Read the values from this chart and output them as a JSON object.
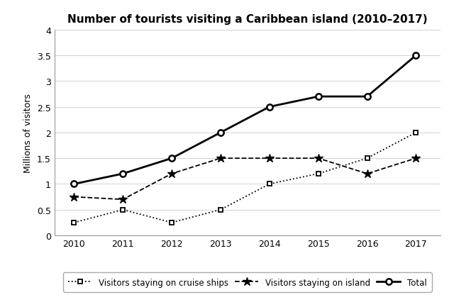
{
  "title": "Number of tourists visiting a Caribbean island (2010–2017)",
  "ylabel": "Millions of visitors",
  "years": [
    2010,
    2011,
    2012,
    2013,
    2014,
    2015,
    2016,
    2017
  ],
  "cruise_ships": [
    0.25,
    0.5,
    0.25,
    0.5,
    1.0,
    1.2,
    1.5,
    2.0
  ],
  "island": [
    0.75,
    0.7,
    1.2,
    1.5,
    1.5,
    1.5,
    1.2,
    1.5
  ],
  "total": [
    1.0,
    1.2,
    1.5,
    2.0,
    2.5,
    2.7,
    2.7,
    3.5
  ],
  "ylim": [
    0,
    4
  ],
  "yticks": [
    0,
    0.5,
    1.0,
    1.5,
    2.0,
    2.5,
    3.0,
    3.5,
    4
  ],
  "ytick_labels": [
    "0",
    "0.5",
    "1",
    "1.5",
    "2",
    "2.5",
    "3",
    "3.5",
    "4"
  ],
  "xlim": [
    2009.6,
    2017.5
  ],
  "legend_labels": [
    "Visitors staying on cruise ships",
    "Visitors staying on island",
    "Total"
  ],
  "background_color": "#ffffff",
  "line_color": "#000000",
  "title_fontsize": 11,
  "axis_fontsize": 9,
  "tick_fontsize": 9,
  "legend_fontsize": 8.5
}
